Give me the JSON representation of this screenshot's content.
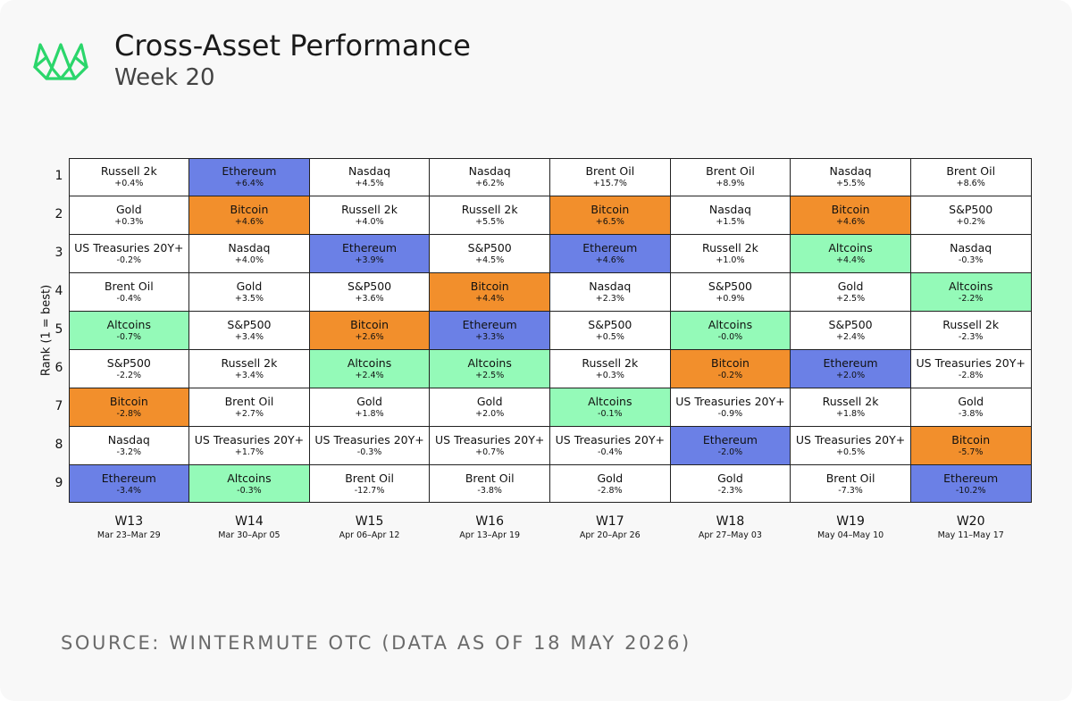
{
  "header": {
    "title": "Cross-Asset Performance",
    "subtitle": "Week 20",
    "logo_icon": "wintermute-logo-icon"
  },
  "colors": {
    "Ethereum": "#6b80e6",
    "Bitcoin": "#f28f2c",
    "Altcoins": "#94fab8",
    "default": "#ffffff"
  },
  "chart_data": {
    "type": "table",
    "ylabel": "Rank (1 = best)",
    "ranks": [
      "1",
      "2",
      "3",
      "4",
      "5",
      "6",
      "7",
      "8",
      "9"
    ],
    "weeks": [
      {
        "label": "W13",
        "range": "Mar 23–Mar 29",
        "cells": [
          {
            "asset": "Russell 2k",
            "ret": "+0.4%"
          },
          {
            "asset": "Gold",
            "ret": "+0.3%"
          },
          {
            "asset": "US Treasuries 20Y+",
            "ret": "-0.2%"
          },
          {
            "asset": "Brent Oil",
            "ret": "-0.4%"
          },
          {
            "asset": "Altcoins",
            "ret": "-0.7%"
          },
          {
            "asset": "S&P500",
            "ret": "-2.2%"
          },
          {
            "asset": "Bitcoin",
            "ret": "-2.8%"
          },
          {
            "asset": "Nasdaq",
            "ret": "-3.2%"
          },
          {
            "asset": "Ethereum",
            "ret": "-3.4%"
          }
        ]
      },
      {
        "label": "W14",
        "range": "Mar 30–Apr 05",
        "cells": [
          {
            "asset": "Ethereum",
            "ret": "+6.4%"
          },
          {
            "asset": "Bitcoin",
            "ret": "+4.6%"
          },
          {
            "asset": "Nasdaq",
            "ret": "+4.0%"
          },
          {
            "asset": "Gold",
            "ret": "+3.5%"
          },
          {
            "asset": "S&P500",
            "ret": "+3.4%"
          },
          {
            "asset": "Russell 2k",
            "ret": "+3.4%"
          },
          {
            "asset": "Brent Oil",
            "ret": "+2.7%"
          },
          {
            "asset": "US Treasuries 20Y+",
            "ret": "+1.7%"
          },
          {
            "asset": "Altcoins",
            "ret": "-0.3%"
          }
        ]
      },
      {
        "label": "W15",
        "range": "Apr 06–Apr 12",
        "cells": [
          {
            "asset": "Nasdaq",
            "ret": "+4.5%"
          },
          {
            "asset": "Russell 2k",
            "ret": "+4.0%"
          },
          {
            "asset": "Ethereum",
            "ret": "+3.9%"
          },
          {
            "asset": "S&P500",
            "ret": "+3.6%"
          },
          {
            "asset": "Bitcoin",
            "ret": "+2.6%"
          },
          {
            "asset": "Altcoins",
            "ret": "+2.4%"
          },
          {
            "asset": "Gold",
            "ret": "+1.8%"
          },
          {
            "asset": "US Treasuries 20Y+",
            "ret": "-0.3%"
          },
          {
            "asset": "Brent Oil",
            "ret": "-12.7%"
          }
        ]
      },
      {
        "label": "W16",
        "range": "Apr 13–Apr 19",
        "cells": [
          {
            "asset": "Nasdaq",
            "ret": "+6.2%"
          },
          {
            "asset": "Russell 2k",
            "ret": "+5.5%"
          },
          {
            "asset": "S&P500",
            "ret": "+4.5%"
          },
          {
            "asset": "Bitcoin",
            "ret": "+4.4%"
          },
          {
            "asset": "Ethereum",
            "ret": "+3.3%"
          },
          {
            "asset": "Altcoins",
            "ret": "+2.5%"
          },
          {
            "asset": "Gold",
            "ret": "+2.0%"
          },
          {
            "asset": "US Treasuries 20Y+",
            "ret": "+0.7%"
          },
          {
            "asset": "Brent Oil",
            "ret": "-3.8%"
          }
        ]
      },
      {
        "label": "W17",
        "range": "Apr 20–Apr 26",
        "cells": [
          {
            "asset": "Brent Oil",
            "ret": "+15.7%"
          },
          {
            "asset": "Bitcoin",
            "ret": "+6.5%"
          },
          {
            "asset": "Ethereum",
            "ret": "+4.6%"
          },
          {
            "asset": "Nasdaq",
            "ret": "+2.3%"
          },
          {
            "asset": "S&P500",
            "ret": "+0.5%"
          },
          {
            "asset": "Russell 2k",
            "ret": "+0.3%"
          },
          {
            "asset": "Altcoins",
            "ret": "-0.1%"
          },
          {
            "asset": "US Treasuries 20Y+",
            "ret": "-0.4%"
          },
          {
            "asset": "Gold",
            "ret": "-2.8%"
          }
        ]
      },
      {
        "label": "W18",
        "range": "Apr 27–May 03",
        "cells": [
          {
            "asset": "Brent Oil",
            "ret": "+8.9%"
          },
          {
            "asset": "Nasdaq",
            "ret": "+1.5%"
          },
          {
            "asset": "Russell 2k",
            "ret": "+1.0%"
          },
          {
            "asset": "S&P500",
            "ret": "+0.9%"
          },
          {
            "asset": "Altcoins",
            "ret": "-0.0%"
          },
          {
            "asset": "Bitcoin",
            "ret": "-0.2%"
          },
          {
            "asset": "US Treasuries 20Y+",
            "ret": "-0.9%"
          },
          {
            "asset": "Ethereum",
            "ret": "-2.0%"
          },
          {
            "asset": "Gold",
            "ret": "-2.3%"
          }
        ]
      },
      {
        "label": "W19",
        "range": "May 04–May 10",
        "cells": [
          {
            "asset": "Nasdaq",
            "ret": "+5.5%"
          },
          {
            "asset": "Bitcoin",
            "ret": "+4.6%"
          },
          {
            "asset": "Altcoins",
            "ret": "+4.4%"
          },
          {
            "asset": "Gold",
            "ret": "+2.5%"
          },
          {
            "asset": "S&P500",
            "ret": "+2.4%"
          },
          {
            "asset": "Ethereum",
            "ret": "+2.0%"
          },
          {
            "asset": "Russell 2k",
            "ret": "+1.8%"
          },
          {
            "asset": "US Treasuries 20Y+",
            "ret": "+0.5%"
          },
          {
            "asset": "Brent Oil",
            "ret": "-7.3%"
          }
        ]
      },
      {
        "label": "W20",
        "range": "May 11–May 17",
        "cells": [
          {
            "asset": "Brent Oil",
            "ret": "+8.6%"
          },
          {
            "asset": "S&P500",
            "ret": "+0.2%"
          },
          {
            "asset": "Nasdaq",
            "ret": "-0.3%"
          },
          {
            "asset": "Altcoins",
            "ret": "-2.2%"
          },
          {
            "asset": "Russell 2k",
            "ret": "-2.3%"
          },
          {
            "asset": "US Treasuries 20Y+",
            "ret": "-2.8%"
          },
          {
            "asset": "Gold",
            "ret": "-3.8%"
          },
          {
            "asset": "Bitcoin",
            "ret": "-5.7%"
          },
          {
            "asset": "Ethereum",
            "ret": "-10.2%"
          }
        ]
      }
    ]
  },
  "footer": {
    "source": "SOURCE: WINTERMUTE OTC (DATA AS OF 18 MAY 2026)"
  }
}
